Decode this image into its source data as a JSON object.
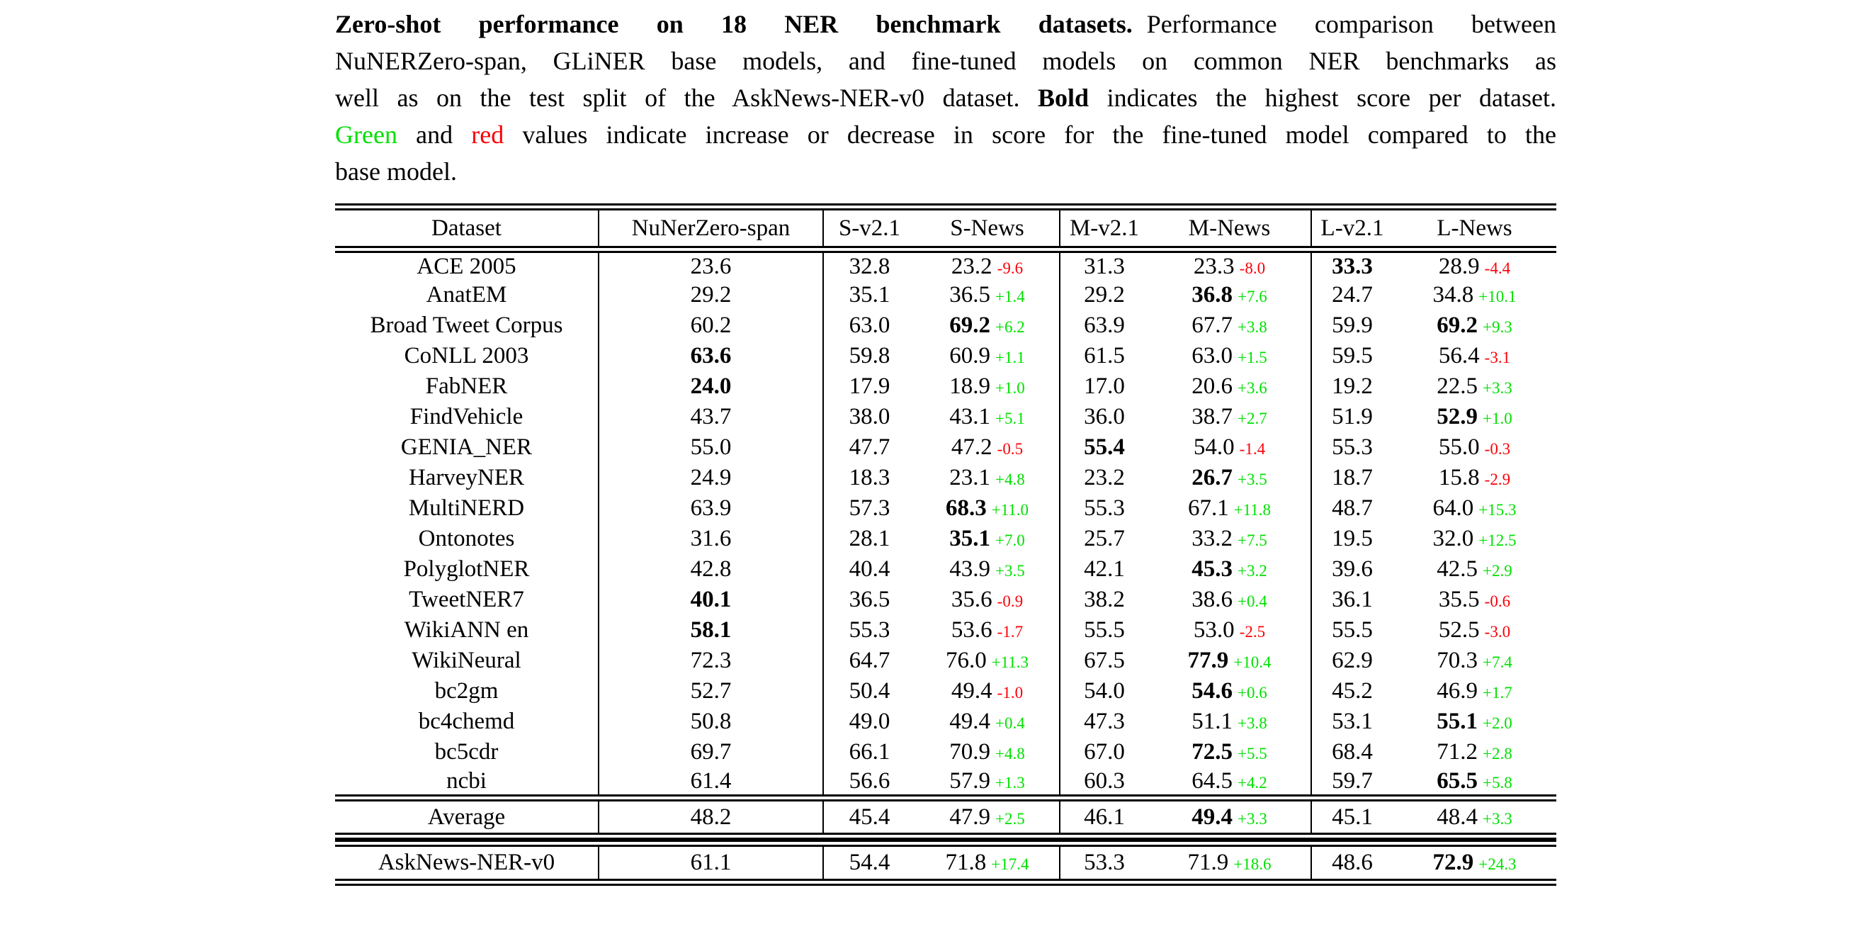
{
  "colors": {
    "green": "#00e000",
    "red": "#fb0007"
  },
  "caption": {
    "lines": [
      {
        "segments": [
          {
            "t": "Zero-shot performance on 18 NER benchmark datasets.",
            "s": "boldgap"
          },
          {
            "t": "Performance comparison between",
            "s": ""
          }
        ]
      },
      {
        "segments": [
          {
            "t": "NuNERZero-span, GLiNER base models, and fine-tuned models on common NER benchmarks as",
            "s": ""
          }
        ]
      },
      {
        "segments": [
          {
            "t": "well as on the test split of the AskNews-NER-v0 dataset. ",
            "s": ""
          },
          {
            "t": "Bold",
            "s": "bold"
          },
          {
            "t": " indicates the highest score per dataset.",
            "s": ""
          }
        ]
      },
      {
        "segments": [
          {
            "t": "Green",
            "s": "green"
          },
          {
            "t": " and ",
            "s": ""
          },
          {
            "t": "red",
            "s": "red"
          },
          {
            "t": " values indicate increase or decrease in score for the fine-tuned model compared to the",
            "s": ""
          }
        ]
      },
      {
        "segments": [
          {
            "t": "base model.",
            "s": ""
          }
        ]
      }
    ]
  },
  "table": {
    "headers": [
      "Dataset",
      "NuNerZero-span",
      "S-v2.1",
      "S-News",
      "M-v2.1",
      "M-News",
      "L-v2.1",
      "L-News"
    ],
    "rows": [
      {
        "name": "ACE 2005",
        "cells": [
          {
            "v": "23.6"
          },
          {
            "v": "32.8"
          },
          {
            "v": "23.2",
            "d": "-9.6"
          },
          {
            "v": "31.3"
          },
          {
            "v": "23.3",
            "d": "-8.0"
          },
          {
            "v": "33.3",
            "b": true
          },
          {
            "v": "28.9",
            "d": "-4.4"
          }
        ]
      },
      {
        "name": "AnatEM",
        "cells": [
          {
            "v": "29.2"
          },
          {
            "v": "35.1"
          },
          {
            "v": "36.5",
            "d": "+1.4"
          },
          {
            "v": "29.2"
          },
          {
            "v": "36.8",
            "b": true,
            "d": "+7.6"
          },
          {
            "v": "24.7"
          },
          {
            "v": "34.8",
            "d": "+10.1"
          }
        ]
      },
      {
        "name": "Broad Tweet Corpus",
        "cells": [
          {
            "v": "60.2"
          },
          {
            "v": "63.0"
          },
          {
            "v": "69.2",
            "b": true,
            "d": "+6.2"
          },
          {
            "v": "63.9"
          },
          {
            "v": "67.7",
            "d": "+3.8"
          },
          {
            "v": "59.9"
          },
          {
            "v": "69.2",
            "b": true,
            "d": "+9.3"
          }
        ]
      },
      {
        "name": "CoNLL 2003",
        "cells": [
          {
            "v": "63.6",
            "b": true
          },
          {
            "v": "59.8"
          },
          {
            "v": "60.9",
            "d": "+1.1"
          },
          {
            "v": "61.5"
          },
          {
            "v": "63.0",
            "d": "+1.5"
          },
          {
            "v": "59.5"
          },
          {
            "v": "56.4",
            "d": "-3.1"
          }
        ]
      },
      {
        "name": "FabNER",
        "cells": [
          {
            "v": "24.0",
            "b": true
          },
          {
            "v": "17.9"
          },
          {
            "v": "18.9",
            "d": "+1.0"
          },
          {
            "v": "17.0"
          },
          {
            "v": "20.6",
            "d": "+3.6"
          },
          {
            "v": "19.2"
          },
          {
            "v": "22.5",
            "d": "+3.3"
          }
        ]
      },
      {
        "name": "FindVehicle",
        "cells": [
          {
            "v": "43.7"
          },
          {
            "v": "38.0"
          },
          {
            "v": "43.1",
            "d": "+5.1"
          },
          {
            "v": "36.0"
          },
          {
            "v": "38.7",
            "d": "+2.7"
          },
          {
            "v": "51.9"
          },
          {
            "v": "52.9",
            "b": true,
            "d": "+1.0"
          }
        ]
      },
      {
        "name": "GENIA_NER",
        "cells": [
          {
            "v": "55.0"
          },
          {
            "v": "47.7"
          },
          {
            "v": "47.2",
            "d": "-0.5"
          },
          {
            "v": "55.4",
            "b": true
          },
          {
            "v": "54.0",
            "d": "-1.4"
          },
          {
            "v": "55.3"
          },
          {
            "v": "55.0",
            "d": "-0.3"
          }
        ]
      },
      {
        "name": "HarveyNER",
        "cells": [
          {
            "v": "24.9"
          },
          {
            "v": "18.3"
          },
          {
            "v": "23.1",
            "d": "+4.8"
          },
          {
            "v": "23.2"
          },
          {
            "v": "26.7",
            "b": true,
            "d": "+3.5"
          },
          {
            "v": "18.7"
          },
          {
            "v": "15.8",
            "d": "-2.9"
          }
        ]
      },
      {
        "name": "MultiNERD",
        "cells": [
          {
            "v": "63.9"
          },
          {
            "v": "57.3"
          },
          {
            "v": "68.3",
            "b": true,
            "d": "+11.0"
          },
          {
            "v": "55.3"
          },
          {
            "v": "67.1",
            "d": "+11.8"
          },
          {
            "v": "48.7"
          },
          {
            "v": "64.0",
            "d": "+15.3"
          }
        ]
      },
      {
        "name": "Ontonotes",
        "cells": [
          {
            "v": "31.6"
          },
          {
            "v": "28.1"
          },
          {
            "v": "35.1",
            "b": true,
            "d": "+7.0"
          },
          {
            "v": "25.7"
          },
          {
            "v": "33.2",
            "d": "+7.5"
          },
          {
            "v": "19.5"
          },
          {
            "v": "32.0",
            "d": "+12.5"
          }
        ]
      },
      {
        "name": "PolyglotNER",
        "cells": [
          {
            "v": "42.8"
          },
          {
            "v": "40.4"
          },
          {
            "v": "43.9",
            "d": "+3.5"
          },
          {
            "v": "42.1"
          },
          {
            "v": "45.3",
            "b": true,
            "d": "+3.2"
          },
          {
            "v": "39.6"
          },
          {
            "v": "42.5",
            "d": "+2.9"
          }
        ]
      },
      {
        "name": "TweetNER7",
        "cells": [
          {
            "v": "40.1",
            "b": true
          },
          {
            "v": "36.5"
          },
          {
            "v": "35.6",
            "d": "-0.9"
          },
          {
            "v": "38.2"
          },
          {
            "v": "38.6",
            "d": "+0.4"
          },
          {
            "v": "36.1"
          },
          {
            "v": "35.5",
            "d": "-0.6"
          }
        ]
      },
      {
        "name": "WikiANN en",
        "cells": [
          {
            "v": "58.1",
            "b": true
          },
          {
            "v": "55.3"
          },
          {
            "v": "53.6",
            "d": "-1.7"
          },
          {
            "v": "55.5"
          },
          {
            "v": "53.0",
            "d": "-2.5"
          },
          {
            "v": "55.5"
          },
          {
            "v": "52.5",
            "d": "-3.0"
          }
        ]
      },
      {
        "name": "WikiNeural",
        "cells": [
          {
            "v": "72.3"
          },
          {
            "v": "64.7"
          },
          {
            "v": "76.0",
            "d": "+11.3"
          },
          {
            "v": "67.5"
          },
          {
            "v": "77.9",
            "b": true,
            "d": "+10.4"
          },
          {
            "v": "62.9"
          },
          {
            "v": "70.3",
            "d": "+7.4"
          }
        ]
      },
      {
        "name": "bc2gm",
        "cells": [
          {
            "v": "52.7"
          },
          {
            "v": "50.4"
          },
          {
            "v": "49.4",
            "d": "-1.0"
          },
          {
            "v": "54.0"
          },
          {
            "v": "54.6",
            "b": true,
            "d": "+0.6"
          },
          {
            "v": "45.2"
          },
          {
            "v": "46.9",
            "d": "+1.7"
          }
        ]
      },
      {
        "name": "bc4chemd",
        "cells": [
          {
            "v": "50.8"
          },
          {
            "v": "49.0"
          },
          {
            "v": "49.4",
            "d": "+0.4"
          },
          {
            "v": "47.3"
          },
          {
            "v": "51.1",
            "d": "+3.8"
          },
          {
            "v": "53.1"
          },
          {
            "v": "55.1",
            "b": true,
            "d": "+2.0"
          }
        ]
      },
      {
        "name": "bc5cdr",
        "cells": [
          {
            "v": "69.7"
          },
          {
            "v": "66.1"
          },
          {
            "v": "70.9",
            "d": "+4.8"
          },
          {
            "v": "67.0"
          },
          {
            "v": "72.5",
            "b": true,
            "d": "+5.5"
          },
          {
            "v": "68.4"
          },
          {
            "v": "71.2",
            "d": "+2.8"
          }
        ]
      },
      {
        "name": "ncbi",
        "cells": [
          {
            "v": "61.4"
          },
          {
            "v": "56.6"
          },
          {
            "v": "57.9",
            "d": "+1.3"
          },
          {
            "v": "60.3"
          },
          {
            "v": "64.5",
            "d": "+4.2"
          },
          {
            "v": "59.7"
          },
          {
            "v": "65.5",
            "b": true,
            "d": "+5.8"
          }
        ]
      }
    ],
    "average": {
      "name": "Average",
      "cells": [
        {
          "v": "48.2"
        },
        {
          "v": "45.4"
        },
        {
          "v": "47.9",
          "d": "+2.5"
        },
        {
          "v": "46.1"
        },
        {
          "v": "49.4",
          "b": true,
          "d": "+3.3"
        },
        {
          "v": "45.1"
        },
        {
          "v": "48.4",
          "d": "+3.3"
        }
      ]
    },
    "asknews": {
      "name": "AskNews-NER-v0",
      "cells": [
        {
          "v": "61.1"
        },
        {
          "v": "54.4"
        },
        {
          "v": "71.8",
          "d": "+17.4"
        },
        {
          "v": "53.3"
        },
        {
          "v": "71.9",
          "d": "+18.6"
        },
        {
          "v": "48.6"
        },
        {
          "v": "72.9",
          "b": true,
          "d": "+24.3"
        }
      ]
    }
  }
}
